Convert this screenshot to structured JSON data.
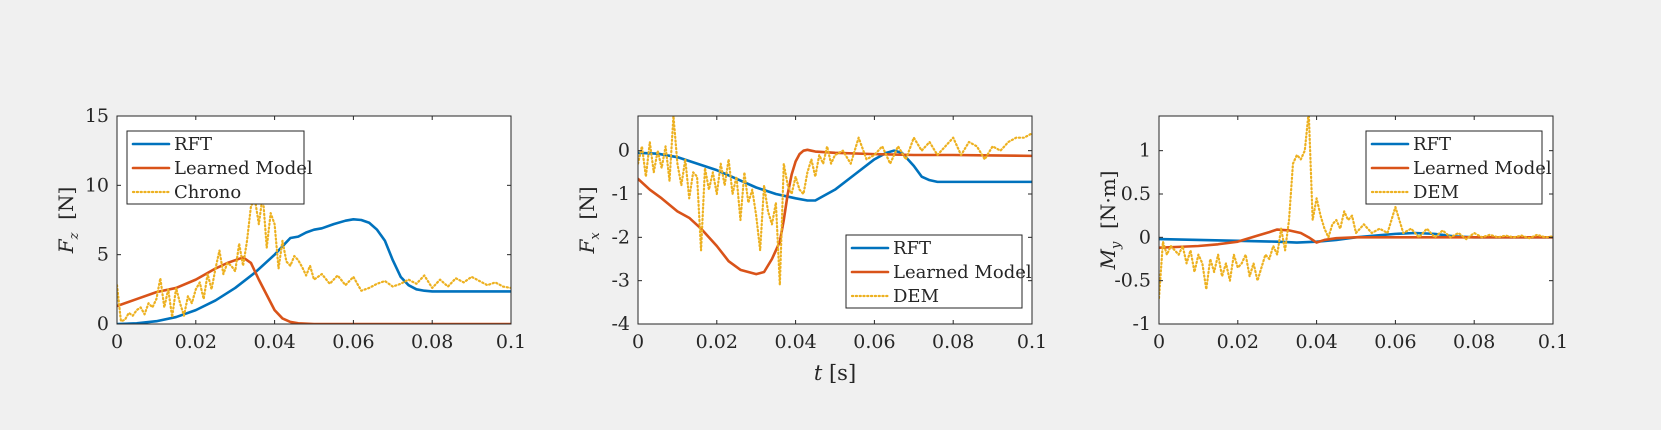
{
  "figure": {
    "background": "#f0f0f0"
  },
  "colors": {
    "RFT": "#0072BD",
    "Learned Model": "#D95319",
    "Chrono": "#EDB120",
    "DEM": "#EDB120",
    "axes": "#262626"
  },
  "chart_data": [
    {
      "type": "line",
      "ylabel": "F_z [N]",
      "ylabel_main": "F",
      "ylabel_sub": "z",
      "ylabel_unit": "[N]",
      "xlabel": "",
      "xlim": [
        0,
        0.1
      ],
      "ylim": [
        0,
        15
      ],
      "xticks": [
        0,
        0.02,
        0.04,
        0.06,
        0.08,
        0.1
      ],
      "xtick_labels": [
        "0",
        "0.02",
        "0.04",
        "0.06",
        "0.08",
        "0.1"
      ],
      "yticks": [
        0,
        5,
        10,
        15
      ],
      "ytick_labels": [
        "0",
        "5",
        "10",
        "15"
      ],
      "legend_position": "top-left",
      "series": [
        {
          "name": "RFT",
          "style": "solid",
          "color": "#0072BD",
          "x": [
            0,
            0.005,
            0.01,
            0.015,
            0.02,
            0.025,
            0.03,
            0.035,
            0.04,
            0.044,
            0.046,
            0.048,
            0.05,
            0.052,
            0.055,
            0.058,
            0.06,
            0.062,
            0.064,
            0.066,
            0.068,
            0.07,
            0.072,
            0.074,
            0.076,
            0.078,
            0.08,
            0.085,
            0.09,
            0.1
          ],
          "y": [
            0,
            0.05,
            0.2,
            0.5,
            1.0,
            1.7,
            2.6,
            3.7,
            5.0,
            6.2,
            6.3,
            6.6,
            6.8,
            6.9,
            7.2,
            7.45,
            7.55,
            7.5,
            7.3,
            6.8,
            6.0,
            4.6,
            3.4,
            2.8,
            2.5,
            2.4,
            2.35,
            2.35,
            2.35,
            2.35
          ]
        },
        {
          "name": "Learned Model",
          "style": "solid",
          "color": "#D95319",
          "x": [
            0,
            0.005,
            0.01,
            0.015,
            0.02,
            0.025,
            0.028,
            0.03,
            0.032,
            0.034,
            0.036,
            0.038,
            0.04,
            0.042,
            0.044,
            0.046,
            0.05,
            0.055,
            0.06,
            0.08,
            0.1
          ],
          "y": [
            1.3,
            1.8,
            2.3,
            2.6,
            3.2,
            4.0,
            4.4,
            4.6,
            4.8,
            4.4,
            3.2,
            2.1,
            1.0,
            0.4,
            0.15,
            0.05,
            0,
            0,
            0,
            0,
            0
          ]
        },
        {
          "name": "Chrono",
          "style": "dotted",
          "color": "#EDB120",
          "x": [
            0,
            0.001,
            0.002,
            0.003,
            0.004,
            0.005,
            0.006,
            0.007,
            0.008,
            0.009,
            0.01,
            0.011,
            0.012,
            0.013,
            0.014,
            0.015,
            0.016,
            0.017,
            0.018,
            0.019,
            0.02,
            0.021,
            0.022,
            0.023,
            0.024,
            0.025,
            0.026,
            0.027,
            0.028,
            0.029,
            0.03,
            0.031,
            0.032,
            0.033,
            0.034,
            0.035,
            0.036,
            0.037,
            0.038,
            0.039,
            0.04,
            0.041,
            0.042,
            0.043,
            0.044,
            0.045,
            0.046,
            0.047,
            0.048,
            0.049,
            0.05,
            0.052,
            0.054,
            0.056,
            0.058,
            0.06,
            0.062,
            0.064,
            0.066,
            0.068,
            0.07,
            0.072,
            0.074,
            0.076,
            0.078,
            0.08,
            0.082,
            0.084,
            0.086,
            0.088,
            0.09,
            0.092,
            0.094,
            0.096,
            0.098,
            0.1
          ],
          "y": [
            2.8,
            0.2,
            0.3,
            0.8,
            0.6,
            1.0,
            1.2,
            0.7,
            1.5,
            1.2,
            1.8,
            3.3,
            1.2,
            2.5,
            0.5,
            2.6,
            1.5,
            0.6,
            2.0,
            1.5,
            2.5,
            3.0,
            1.8,
            3.6,
            2.5,
            4.0,
            5.3,
            3.6,
            4.4,
            4.2,
            3.8,
            5.8,
            4.2,
            6.0,
            8.5,
            9.0,
            7.2,
            9.3,
            5.5,
            8.0,
            7.2,
            4.0,
            6.0,
            4.5,
            4.2,
            4.9,
            4.6,
            4.1,
            3.5,
            4.2,
            3.2,
            3.6,
            2.9,
            3.5,
            2.8,
            3.4,
            2.4,
            2.6,
            2.9,
            3.1,
            2.7,
            2.9,
            3.2,
            2.9,
            3.5,
            2.6,
            3.2,
            2.7,
            3.3,
            3.0,
            3.4,
            3.1,
            2.8,
            3.0,
            2.7,
            2.6
          ]
        }
      ]
    },
    {
      "type": "line",
      "ylabel": "F_x [N]",
      "ylabel_main": "F",
      "ylabel_sub": "x",
      "ylabel_unit": "[N]",
      "xlabel": "t [s]",
      "xlim": [
        0,
        0.1
      ],
      "ylim": [
        -4,
        0.8
      ],
      "xticks": [
        0,
        0.02,
        0.04,
        0.06,
        0.08,
        0.1
      ],
      "xtick_labels": [
        "0",
        "0.02",
        "0.04",
        "0.06",
        "0.08",
        "0.1"
      ],
      "yticks": [
        -4,
        -3,
        -2,
        -1,
        0
      ],
      "ytick_labels": [
        "-4",
        "-3",
        "-2",
        "-1",
        "0"
      ],
      "legend_position": "bottom-right",
      "series": [
        {
          "name": "RFT",
          "style": "solid",
          "color": "#0072BD",
          "x": [
            0,
            0.005,
            0.01,
            0.015,
            0.02,
            0.025,
            0.03,
            0.035,
            0.04,
            0.043,
            0.045,
            0.047,
            0.05,
            0.055,
            0.06,
            0.063,
            0.065,
            0.067,
            0.07,
            0.072,
            0.074,
            0.076,
            0.08,
            0.085,
            0.09,
            0.1
          ],
          "y": [
            -0.05,
            -0.07,
            -0.15,
            -0.3,
            -0.45,
            -0.65,
            -0.85,
            -1.0,
            -1.1,
            -1.15,
            -1.15,
            -1.05,
            -0.9,
            -0.55,
            -0.2,
            -0.05,
            0,
            -0.05,
            -0.35,
            -0.6,
            -0.68,
            -0.72,
            -0.72,
            -0.72,
            -0.72,
            -0.72
          ]
        },
        {
          "name": "Learned Model",
          "style": "solid",
          "color": "#D95319",
          "x": [
            0,
            0.003,
            0.006,
            0.01,
            0.013,
            0.016,
            0.02,
            0.023,
            0.026,
            0.028,
            0.03,
            0.032,
            0.034,
            0.036,
            0.037,
            0.038,
            0.039,
            0.04,
            0.041,
            0.042,
            0.043,
            0.044,
            0.045,
            0.05,
            0.06,
            0.07,
            0.08,
            0.09,
            0.1
          ],
          "y": [
            -0.65,
            -0.9,
            -1.1,
            -1.4,
            -1.55,
            -1.8,
            -2.2,
            -2.55,
            -2.75,
            -2.8,
            -2.85,
            -2.8,
            -2.5,
            -2.1,
            -1.6,
            -1.0,
            -0.55,
            -0.25,
            -0.08,
            0,
            0.02,
            0,
            -0.02,
            -0.05,
            -0.08,
            -0.1,
            -0.1,
            -0.11,
            -0.12
          ]
        },
        {
          "name": "DEM",
          "style": "dotted",
          "color": "#EDB120",
          "x": [
            0,
            0.001,
            0.002,
            0.003,
            0.004,
            0.005,
            0.006,
            0.007,
            0.008,
            0.009,
            0.01,
            0.011,
            0.012,
            0.013,
            0.014,
            0.015,
            0.016,
            0.017,
            0.018,
            0.019,
            0.02,
            0.021,
            0.022,
            0.023,
            0.024,
            0.025,
            0.026,
            0.027,
            0.028,
            0.029,
            0.03,
            0.031,
            0.032,
            0.033,
            0.034,
            0.035,
            0.036,
            0.037,
            0.038,
            0.039,
            0.04,
            0.041,
            0.042,
            0.043,
            0.044,
            0.045,
            0.046,
            0.047,
            0.048,
            0.049,
            0.05,
            0.052,
            0.054,
            0.056,
            0.058,
            0.06,
            0.062,
            0.064,
            0.066,
            0.068,
            0.07,
            0.072,
            0.074,
            0.076,
            0.078,
            0.08,
            0.082,
            0.084,
            0.086,
            0.088,
            0.09,
            0.092,
            0.094,
            0.096,
            0.098,
            0.1
          ],
          "y": [
            -0.3,
            0.1,
            -0.6,
            0.2,
            -0.5,
            0.0,
            -0.4,
            0.1,
            -0.7,
            0.8,
            -0.3,
            -0.8,
            -0.2,
            -1.1,
            -0.5,
            -0.6,
            -2.3,
            -0.4,
            -0.9,
            -0.5,
            -1.0,
            -0.3,
            -0.8,
            -0.2,
            -1.0,
            -0.6,
            -1.6,
            -0.5,
            -1.2,
            -0.9,
            -1.5,
            -2.3,
            -0.8,
            -1.4,
            -1.7,
            -1.2,
            -3.1,
            -0.3,
            -0.8,
            -1.0,
            -0.6,
            -0.9,
            -1.0,
            -0.5,
            -0.2,
            -0.6,
            -0.1,
            -0.3,
            0.1,
            -0.3,
            -0.1,
            0.0,
            -0.3,
            0.3,
            -0.2,
            -0.1,
            0.1,
            -0.3,
            0.1,
            -0.2,
            0.3,
            0.0,
            0.2,
            -0.1,
            0.1,
            0.3,
            -0.1,
            0.2,
            0.1,
            -0.2,
            0.1,
            0.0,
            0.2,
            0.3,
            0.3,
            0.4
          ]
        }
      ]
    },
    {
      "type": "line",
      "ylabel": "M_y [N·m]",
      "ylabel_main": "M",
      "ylabel_sub": "y",
      "ylabel_unit": "[N·m]",
      "xlabel": "",
      "xlim": [
        0,
        0.1
      ],
      "ylim": [
        -1,
        1.4
      ],
      "xticks": [
        0,
        0.02,
        0.04,
        0.06,
        0.08,
        0.1
      ],
      "xtick_labels": [
        "0",
        "0.02",
        "0.04",
        "0.06",
        "0.08",
        "0.1"
      ],
      "yticks": [
        -1,
        -0.5,
        0,
        0.5,
        1
      ],
      "ytick_labels": [
        "-1",
        "-0.5",
        "0",
        "0.5",
        "1"
      ],
      "legend_position": "top-right",
      "series": [
        {
          "name": "RFT",
          "style": "solid",
          "color": "#0072BD",
          "x": [
            0,
            0.01,
            0.02,
            0.03,
            0.035,
            0.04,
            0.045,
            0.05,
            0.055,
            0.06,
            0.065,
            0.07,
            0.075,
            0.08,
            0.09,
            0.1
          ],
          "y": [
            -0.02,
            -0.03,
            -0.04,
            -0.05,
            -0.06,
            -0.05,
            -0.03,
            0.0,
            0.02,
            0.04,
            0.05,
            0.04,
            0.01,
            0.0,
            0.0,
            0.0
          ]
        },
        {
          "name": "Learned Model",
          "style": "solid",
          "color": "#D95319",
          "x": [
            0,
            0.005,
            0.01,
            0.015,
            0.02,
            0.025,
            0.028,
            0.03,
            0.033,
            0.036,
            0.038,
            0.04,
            0.042,
            0.045,
            0.05,
            0.06,
            0.07,
            0.08,
            0.1
          ],
          "y": [
            -0.12,
            -0.11,
            -0.1,
            -0.08,
            -0.05,
            0.02,
            0.06,
            0.09,
            0.08,
            0.05,
            0.0,
            -0.06,
            -0.03,
            -0.01,
            0.0,
            0.0,
            0.0,
            0.0,
            0.0
          ]
        },
        {
          "name": "DEM",
          "style": "dotted",
          "color": "#EDB120",
          "x": [
            0,
            0.001,
            0.002,
            0.003,
            0.004,
            0.005,
            0.006,
            0.007,
            0.008,
            0.009,
            0.01,
            0.011,
            0.012,
            0.013,
            0.014,
            0.015,
            0.016,
            0.017,
            0.018,
            0.019,
            0.02,
            0.021,
            0.022,
            0.023,
            0.024,
            0.025,
            0.026,
            0.027,
            0.028,
            0.029,
            0.03,
            0.031,
            0.032,
            0.033,
            0.034,
            0.035,
            0.036,
            0.037,
            0.038,
            0.039,
            0.04,
            0.041,
            0.042,
            0.043,
            0.044,
            0.045,
            0.046,
            0.047,
            0.048,
            0.049,
            0.05,
            0.052,
            0.054,
            0.056,
            0.058,
            0.06,
            0.062,
            0.064,
            0.066,
            0.068,
            0.07,
            0.072,
            0.074,
            0.076,
            0.078,
            0.08,
            0.082,
            0.084,
            0.086,
            0.088,
            0.09,
            0.092,
            0.094,
            0.096,
            0.098,
            0.1
          ],
          "y": [
            -0.7,
            -0.05,
            -0.2,
            -0.1,
            -0.15,
            -0.2,
            -0.1,
            -0.3,
            -0.15,
            -0.4,
            -0.2,
            -0.3,
            -0.6,
            -0.25,
            -0.4,
            -0.2,
            -0.45,
            -0.3,
            -0.5,
            -0.2,
            -0.35,
            -0.3,
            -0.2,
            -0.45,
            -0.3,
            -0.5,
            -0.35,
            -0.2,
            -0.25,
            -0.1,
            -0.2,
            0.1,
            -0.15,
            0.2,
            0.85,
            0.95,
            0.9,
            1.0,
            1.45,
            0.2,
            0.45,
            0.25,
            0.1,
            0.0,
            0.15,
            0.2,
            0.1,
            0.3,
            0.2,
            0.25,
            0.05,
            0.15,
            0.05,
            0.1,
            0.05,
            0.35,
            0.05,
            0.1,
            0.0,
            0.1,
            0.0,
            0.08,
            0.0,
            0.05,
            -0.02,
            0.05,
            0.0,
            0.03,
            0.0,
            0.02,
            0.0,
            0.02,
            -0.01,
            0.03,
            0.0,
            0.01
          ]
        }
      ]
    }
  ]
}
